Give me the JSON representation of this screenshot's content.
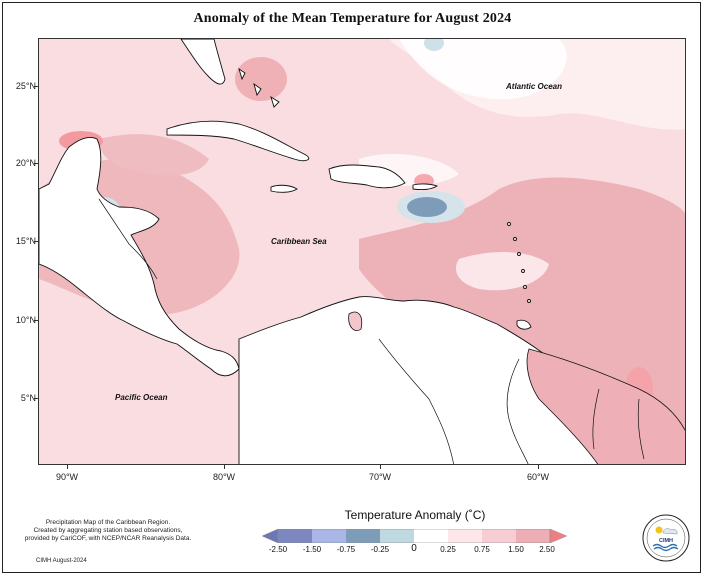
{
  "title": "Anomaly of the Mean Temperature for August 2024",
  "map": {
    "lat_ticks": [
      "25°N",
      "20°N",
      "15°N",
      "10°N",
      "5°N"
    ],
    "lon_ticks": [
      "90°W",
      "80°W",
      "70°W",
      "60°W"
    ],
    "labels": {
      "atlantic": "Atlantic Ocean",
      "caribbean": "Caribbean Sea",
      "pacific": "Pacific Ocean"
    }
  },
  "legend": {
    "title": "Temperature Anomaly (˚C)",
    "values": [
      "-2.50",
      "-1.50",
      "-0.75",
      "-0.25",
      "0",
      "0.25",
      "0.75",
      "1.50",
      "2.50"
    ],
    "colors": [
      "#7e88c0",
      "#a9b6e6",
      "#7d9cb8",
      "#bfd9e0",
      "#ffffff",
      "#fde7ea",
      "#f6cdd3",
      "#eeaeb5",
      "#f07f85"
    ]
  },
  "notes": [
    "Precipitation Map of the Caribbean Region.",
    "Created by aggregating station based observations,",
    "provided by CariCOF, with NCEP/NCAR Reanalysis Data."
  ],
  "credit": "CIMH August-2024",
  "logo": {
    "text": "CIMH",
    "icon": "sun-cloud-logo-icon"
  }
}
